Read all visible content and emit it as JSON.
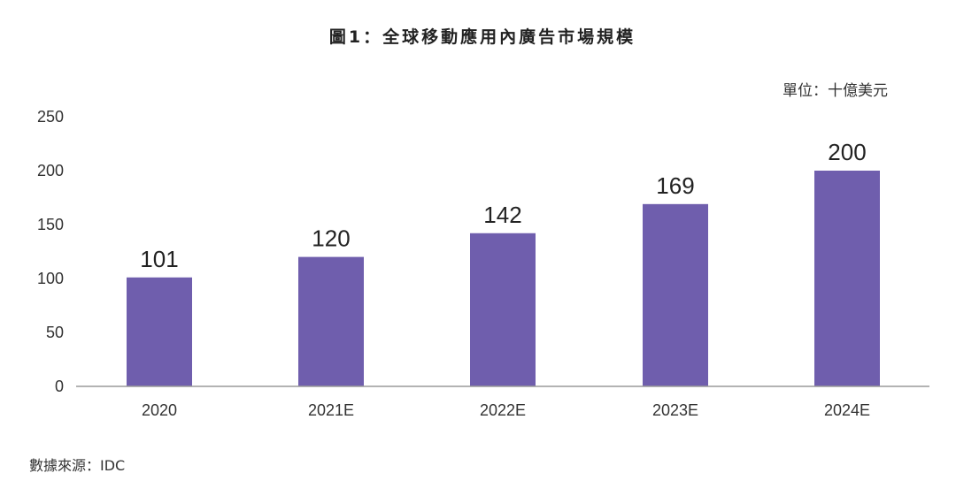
{
  "title": "圖1：全球移動應用內廣告市場規模",
  "unit_label": "單位：十億美元",
  "source_label": "數據來源：IDC",
  "chart_data": {
    "type": "bar",
    "categories": [
      "2020",
      "2021E",
      "2022E",
      "2023E",
      "2024E"
    ],
    "values": [
      101,
      120,
      142,
      169,
      200
    ],
    "ylim": [
      0,
      250
    ],
    "yticks": [
      0,
      50,
      100,
      150,
      200,
      250
    ],
    "grid": false,
    "legend": "none",
    "bar_color": "#6f5ead"
  }
}
